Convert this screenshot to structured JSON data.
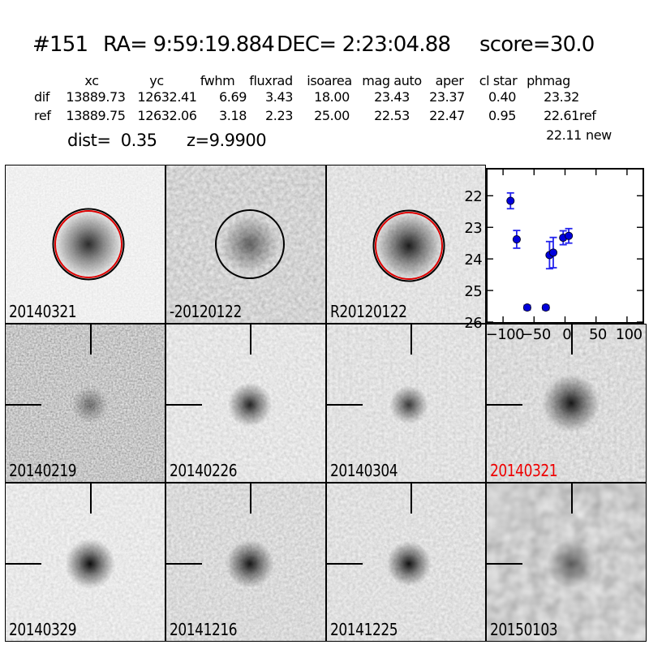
{
  "header": {
    "id": "#151",
    "ra": "RA= 9:59:19.884",
    "dec": "DEC= 2:23:04.88",
    "score": "score=30.0"
  },
  "table": {
    "headers": [
      "xc",
      "yc",
      "fwhm",
      "fluxrad",
      "isoarea",
      "mag auto",
      "aper",
      "cl star",
      "phmag"
    ],
    "rows": [
      {
        "label": "dif",
        "values": [
          "13889.73",
          "12632.41",
          "6.69",
          "3.43",
          "18.00",
          "23.43",
          "23.37",
          "0.40",
          "23.32"
        ],
        "suffix": ""
      },
      {
        "label": "ref",
        "values": [
          "13889.75",
          "12632.06",
          "3.18",
          "2.23",
          "25.00",
          "22.53",
          "22.47",
          "0.95",
          "22.61"
        ],
        "suffix": "ref"
      }
    ],
    "extra_phmag": {
      "value": "22.11",
      "suffix": "new"
    },
    "dist": "dist=  0.35",
    "z": "z=9.9900"
  },
  "panels": [
    {
      "label": "20140321",
      "label_color": "#000000",
      "noise": [
        0.45,
        3,
        0.3,
        0.72,
        11
      ],
      "blob": [
        52,
        50,
        88,
        0.82
      ],
      "circles": "red_black",
      "crosshair": false
    },
    {
      "label": "-20120122",
      "label_color": "#000000",
      "noise": [
        0.22,
        3,
        0.55,
        0.38,
        22
      ],
      "blob": [
        53,
        50,
        72,
        0.55
      ],
      "circles": "black",
      "crosshair": false
    },
    {
      "label": "R20120122",
      "label_color": "#000000",
      "noise": [
        0.3,
        3,
        0.45,
        0.54,
        33
      ],
      "blob": [
        52,
        51,
        84,
        0.88
      ],
      "circles": "red_black",
      "crosshair": false
    },
    {
      "label": "",
      "label_color": "#000000",
      "noise": [
        0,
        0,
        0,
        0,
        0
      ],
      "blob": [
        0,
        0,
        0,
        0
      ],
      "circles": "none",
      "crosshair": false
    },
    {
      "label": "20140219",
      "label_color": "#000000",
      "noise": [
        0.45,
        4,
        0.85,
        0.14,
        44
      ],
      "blob": [
        53,
        51,
        46,
        0.45
      ],
      "circles": "none",
      "crosshair": true
    },
    {
      "label": "20140226",
      "label_color": "#000000",
      "noise": [
        0.28,
        3,
        0.45,
        0.56,
        55
      ],
      "blob": [
        53,
        51,
        55,
        0.85
      ],
      "circles": "none",
      "crosshair": true
    },
    {
      "label": "20140304",
      "label_color": "#000000",
      "noise": [
        0.28,
        3,
        0.45,
        0.53,
        66
      ],
      "blob": [
        52,
        51,
        48,
        0.75
      ],
      "circles": "none",
      "crosshair": true
    },
    {
      "label": "20140321",
      "label_color": "#ee0000",
      "noise": [
        0.26,
        3,
        0.5,
        0.46,
        77
      ],
      "blob": [
        53,
        50,
        72,
        0.9
      ],
      "circles": "none",
      "crosshair": true
    },
    {
      "label": "20140329",
      "label_color": "#000000",
      "noise": [
        0.3,
        3,
        0.42,
        0.6,
        88
      ],
      "blob": [
        53,
        51,
        62,
        0.95
      ],
      "circles": "none",
      "crosshair": true
    },
    {
      "label": "20141216",
      "label_color": "#000000",
      "noise": [
        0.3,
        3,
        0.5,
        0.45,
        99
      ],
      "blob": [
        53,
        51,
        60,
        0.9
      ],
      "circles": "none",
      "crosshair": true
    },
    {
      "label": "20141225",
      "label_color": "#000000",
      "noise": [
        0.28,
        3,
        0.45,
        0.52,
        12
      ],
      "blob": [
        52,
        51,
        56,
        0.92
      ],
      "circles": "none",
      "crosshair": true
    },
    {
      "label": "20150103",
      "label_color": "#000000",
      "noise": [
        0.055,
        2,
        0.65,
        0.28,
        13
      ],
      "blob": [
        53,
        51,
        60,
        0.55
      ],
      "circles": "none",
      "crosshair": true
    }
  ],
  "chart_data": {
    "type": "scatter",
    "title": "",
    "xlabel": "",
    "ylabel": "",
    "x": [
      -88,
      -78,
      -61,
      -31,
      -25,
      -19,
      -3,
      6
    ],
    "y": [
      22.16,
      23.38,
      25.54,
      25.54,
      23.88,
      23.8,
      23.33,
      23.27
    ],
    "yerr": [
      0.25,
      0.28,
      0.07,
      0.07,
      0.43,
      0.48,
      0.22,
      0.23
    ],
    "xticks": [
      -100,
      -50,
      0,
      50,
      100
    ],
    "yticks": [
      22,
      23,
      24,
      25,
      26
    ],
    "xlim": [
      -125,
      125
    ],
    "ylim_top": 21.17,
    "ylim_bottom": 26,
    "y_axis_inverted": true,
    "grid": false,
    "legend": "none",
    "marker_color": "#0000dd",
    "error_color": "#2222ee"
  }
}
